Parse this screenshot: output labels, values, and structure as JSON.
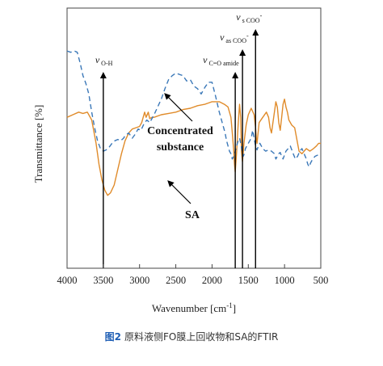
{
  "chart_data": {
    "type": "line",
    "ylabel": "Transmittance [%]",
    "xlabel_main": "Wavenumber [cm",
    "xlabel_sup": "-1",
    "xlabel_end": "]",
    "xlim": [
      4000,
      500
    ],
    "x_reversed": true,
    "xticks": [
      4000,
      3500,
      3000,
      2500,
      2000,
      1500,
      1000,
      500
    ],
    "grid": false,
    "series": [
      {
        "name": "Concentrated substance",
        "color": "#e08b2a",
        "dash": "solid",
        "points": [
          [
            4000,
            0.42
          ],
          [
            3920,
            0.41
          ],
          [
            3840,
            0.4
          ],
          [
            3780,
            0.405
          ],
          [
            3720,
            0.4
          ],
          [
            3660,
            0.43
          ],
          [
            3600,
            0.52
          ],
          [
            3560,
            0.6
          ],
          [
            3520,
            0.66
          ],
          [
            3480,
            0.7
          ],
          [
            3440,
            0.72
          ],
          [
            3400,
            0.71
          ],
          [
            3350,
            0.68
          ],
          [
            3300,
            0.62
          ],
          [
            3250,
            0.56
          ],
          [
            3200,
            0.51
          ],
          [
            3150,
            0.48
          ],
          [
            3100,
            0.465
          ],
          [
            3050,
            0.46
          ],
          [
            3000,
            0.455
          ],
          [
            2970,
            0.44
          ],
          [
            2950,
            0.42
          ],
          [
            2930,
            0.4
          ],
          [
            2910,
            0.42
          ],
          [
            2880,
            0.4
          ],
          [
            2860,
            0.425
          ],
          [
            2830,
            0.42
          ],
          [
            2800,
            0.42
          ],
          [
            2700,
            0.41
          ],
          [
            2600,
            0.405
          ],
          [
            2500,
            0.4
          ],
          [
            2400,
            0.39
          ],
          [
            2300,
            0.385
          ],
          [
            2200,
            0.375
          ],
          [
            2100,
            0.37
          ],
          [
            2050,
            0.365
          ],
          [
            2000,
            0.36
          ],
          [
            1900,
            0.36
          ],
          [
            1830,
            0.37
          ],
          [
            1780,
            0.38
          ],
          [
            1740,
            0.42
          ],
          [
            1720,
            0.48
          ],
          [
            1700,
            0.55
          ],
          [
            1690,
            0.6
          ],
          [
            1680,
            0.63
          ],
          [
            1660,
            0.55
          ],
          [
            1640,
            0.45
          ],
          [
            1620,
            0.37
          ],
          [
            1605,
            0.42
          ],
          [
            1595,
            0.55
          ],
          [
            1580,
            0.59
          ],
          [
            1560,
            0.52
          ],
          [
            1530,
            0.45
          ],
          [
            1500,
            0.41
          ],
          [
            1460,
            0.385
          ],
          [
            1420,
            0.41
          ],
          [
            1400,
            0.46
          ],
          [
            1390,
            0.5
          ],
          [
            1380,
            0.52
          ],
          [
            1365,
            0.48
          ],
          [
            1350,
            0.44
          ],
          [
            1300,
            0.42
          ],
          [
            1250,
            0.4
          ],
          [
            1220,
            0.42
          ],
          [
            1200,
            0.46
          ],
          [
            1180,
            0.48
          ],
          [
            1160,
            0.44
          ],
          [
            1140,
            0.4
          ],
          [
            1120,
            0.36
          ],
          [
            1100,
            0.38
          ],
          [
            1080,
            0.44
          ],
          [
            1060,
            0.47
          ],
          [
            1040,
            0.42
          ],
          [
            1020,
            0.37
          ],
          [
            1000,
            0.35
          ],
          [
            980,
            0.38
          ],
          [
            960,
            0.4
          ],
          [
            940,
            0.43
          ],
          [
            900,
            0.45
          ],
          [
            860,
            0.46
          ],
          [
            800,
            0.55
          ],
          [
            760,
            0.56
          ],
          [
            700,
            0.54
          ],
          [
            650,
            0.55
          ],
          [
            600,
            0.54
          ],
          [
            560,
            0.53
          ],
          [
            530,
            0.52
          ],
          [
            500,
            0.52
          ]
        ]
      },
      {
        "name": "SA",
        "color": "#3b78b8",
        "dash": "6,4",
        "points": [
          [
            4000,
            0.165
          ],
          [
            3950,
            0.17
          ],
          [
            3900,
            0.165
          ],
          [
            3860,
            0.17
          ],
          [
            3820,
            0.21
          ],
          [
            3780,
            0.26
          ],
          [
            3740,
            0.29
          ],
          [
            3700,
            0.33
          ],
          [
            3660,
            0.4
          ],
          [
            3620,
            0.46
          ],
          [
            3580,
            0.51
          ],
          [
            3540,
            0.54
          ],
          [
            3500,
            0.55
          ],
          [
            3460,
            0.545
          ],
          [
            3420,
            0.535
          ],
          [
            3380,
            0.52
          ],
          [
            3340,
            0.51
          ],
          [
            3300,
            0.505
          ],
          [
            3260,
            0.51
          ],
          [
            3220,
            0.5
          ],
          [
            3200,
            0.49
          ],
          [
            3150,
            0.48
          ],
          [
            3100,
            0.5
          ],
          [
            3060,
            0.485
          ],
          [
            3020,
            0.465
          ],
          [
            2980,
            0.47
          ],
          [
            2940,
            0.445
          ],
          [
            2900,
            0.43
          ],
          [
            2860,
            0.44
          ],
          [
            2800,
            0.41
          ],
          [
            2750,
            0.38
          ],
          [
            2700,
            0.35
          ],
          [
            2650,
            0.31
          ],
          [
            2600,
            0.275
          ],
          [
            2550,
            0.26
          ],
          [
            2500,
            0.25
          ],
          [
            2450,
            0.255
          ],
          [
            2400,
            0.26
          ],
          [
            2350,
            0.28
          ],
          [
            2300,
            0.275
          ],
          [
            2250,
            0.3
          ],
          [
            2200,
            0.31
          ],
          [
            2150,
            0.33
          ],
          [
            2100,
            0.305
          ],
          [
            2050,
            0.285
          ],
          [
            2000,
            0.285
          ],
          [
            1950,
            0.34
          ],
          [
            1900,
            0.4
          ],
          [
            1860,
            0.44
          ],
          [
            1820,
            0.48
          ],
          [
            1800,
            0.51
          ],
          [
            1780,
            0.53
          ],
          [
            1760,
            0.55
          ],
          [
            1740,
            0.56
          ],
          [
            1720,
            0.58
          ],
          [
            1700,
            0.57
          ],
          [
            1680,
            0.55
          ],
          [
            1660,
            0.53
          ],
          [
            1640,
            0.51
          ],
          [
            1620,
            0.5
          ],
          [
            1600,
            0.525
          ],
          [
            1585,
            0.55
          ],
          [
            1570,
            0.57
          ],
          [
            1555,
            0.56
          ],
          [
            1540,
            0.54
          ],
          [
            1520,
            0.53
          ],
          [
            1500,
            0.52
          ],
          [
            1460,
            0.5
          ],
          [
            1440,
            0.47
          ],
          [
            1420,
            0.5
          ],
          [
            1400,
            0.53
          ],
          [
            1380,
            0.545
          ],
          [
            1360,
            0.53
          ],
          [
            1340,
            0.52
          ],
          [
            1300,
            0.54
          ],
          [
            1260,
            0.55
          ],
          [
            1220,
            0.545
          ],
          [
            1180,
            0.55
          ],
          [
            1140,
            0.56
          ],
          [
            1120,
            0.58
          ],
          [
            1100,
            0.57
          ],
          [
            1080,
            0.56
          ],
          [
            1060,
            0.555
          ],
          [
            1040,
            0.57
          ],
          [
            1020,
            0.58
          ],
          [
            1000,
            0.565
          ],
          [
            980,
            0.55
          ],
          [
            950,
            0.54
          ],
          [
            920,
            0.53
          ],
          [
            880,
            0.56
          ],
          [
            850,
            0.58
          ],
          [
            820,
            0.57
          ],
          [
            790,
            0.55
          ],
          [
            760,
            0.54
          ],
          [
            730,
            0.56
          ],
          [
            700,
            0.58
          ],
          [
            680,
            0.6
          ],
          [
            660,
            0.61
          ],
          [
            640,
            0.595
          ],
          [
            620,
            0.585
          ],
          [
            580,
            0.57
          ],
          [
            540,
            0.565
          ],
          [
            500,
            0.56
          ]
        ]
      }
    ],
    "markers": [
      {
        "id": "oh",
        "x": 3500,
        "label_main": "v",
        "label_sub": "O-H"
      },
      {
        "id": "amide",
        "x": 1680,
        "label_main": "v",
        "label_sub": "C=O amide"
      },
      {
        "id": "as",
        "x": 1580,
        "label_main": "v",
        "label_sub": "as COO",
        "label_sup": "-"
      },
      {
        "id": "s",
        "x": 1400,
        "label_main": "v",
        "label_sub": "s COO",
        "label_sup": "-"
      }
    ],
    "annotations": [
      {
        "id": "conc",
        "text_lines": [
          "Concentrated",
          "substance"
        ]
      },
      {
        "id": "sa",
        "text_lines": [
          "SA"
        ]
      }
    ]
  },
  "caption": {
    "figure_number": "图2",
    "text": "原料液侧FO膜上回收物和SA的FTIR"
  }
}
